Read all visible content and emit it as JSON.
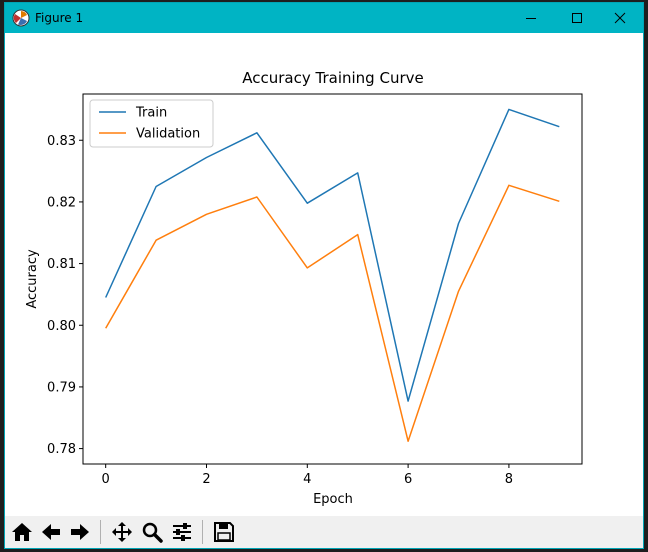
{
  "window": {
    "title": "Figure 1",
    "controls": [
      "minimize",
      "maximize",
      "close"
    ]
  },
  "toolbar": {
    "buttons": [
      {
        "name": "home",
        "icon": "home-icon"
      },
      {
        "name": "back",
        "icon": "arrow-left-icon"
      },
      {
        "name": "forward",
        "icon": "arrow-right-icon"
      },
      {
        "name": "pan",
        "icon": "move-icon"
      },
      {
        "name": "zoom",
        "icon": "magnifier-icon"
      },
      {
        "name": "configure-subplots",
        "icon": "sliders-icon"
      },
      {
        "name": "save",
        "icon": "floppy-disk-icon"
      }
    ]
  },
  "colors": {
    "titlebar": "#00b4c4",
    "train": "#1f77b4",
    "validation": "#ff7f0e"
  },
  "chart_data": {
    "type": "line",
    "title": "Accuracy Training Curve",
    "xlabel": "Epoch",
    "ylabel": "Accuracy",
    "x": [
      0,
      1,
      2,
      3,
      4,
      5,
      6,
      7,
      8,
      9
    ],
    "xlim": [
      -0.45,
      9.45
    ],
    "ylim": [
      0.7775,
      0.8375
    ],
    "xticks": [
      0,
      2,
      4,
      6,
      8
    ],
    "yticks": [
      0.78,
      0.79,
      0.8,
      0.81,
      0.82,
      0.83
    ],
    "ytick_labels": [
      "0.78",
      "0.79",
      "0.80",
      "0.81",
      "0.82",
      "0.83"
    ],
    "grid": false,
    "legend_position": "top-left",
    "series": [
      {
        "name": "Train",
        "color": "#1f77b4",
        "values": [
          0.8045,
          0.8225,
          0.8272,
          0.8312,
          0.8198,
          0.8247,
          0.7877,
          0.8165,
          0.835,
          0.8322
        ]
      },
      {
        "name": "Validation",
        "color": "#ff7f0e",
        "values": [
          0.7995,
          0.8138,
          0.818,
          0.8208,
          0.8093,
          0.8147,
          0.7812,
          0.8055,
          0.8227,
          0.8201
        ]
      }
    ]
  }
}
